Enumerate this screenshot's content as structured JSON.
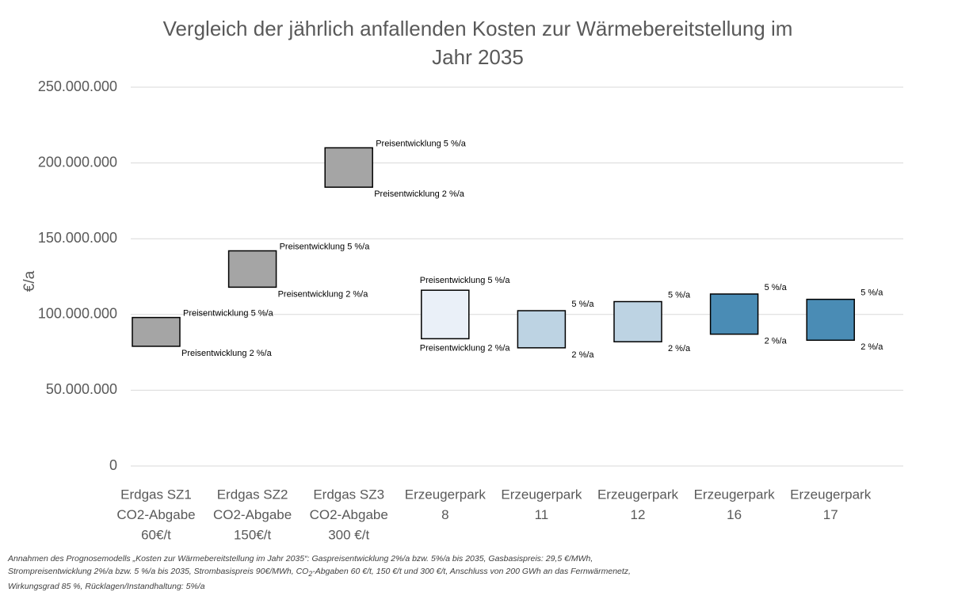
{
  "chart_data": {
    "type": "range_bar",
    "title": [
      "Vergleich der jährlich anfallenden Kosten zur Wärmebereitstellung im",
      "Jahr 2035"
    ],
    "y_label": "€/a",
    "categories": [
      [
        "Erdgas SZ1",
        "CO2-Abgabe",
        "60€/t"
      ],
      [
        "Erdgas SZ2",
        "CO2-Abgabe",
        "150€/t"
      ],
      [
        "Erdgas SZ3",
        "CO2-Abgabe",
        "300 €/t"
      ],
      [
        "Erzeugerpark",
        "8"
      ],
      [
        "Erzeugerpark",
        "11"
      ],
      [
        "Erzeugerpark",
        "12"
      ],
      [
        "Erzeugerpark",
        "16"
      ],
      [
        "Erzeugerpark",
        "17"
      ]
    ],
    "low": [
      79000000,
      118000000,
      184000000,
      84000000,
      78000000,
      82000000,
      87000000,
      83000000
    ],
    "high": [
      98000000,
      142000000,
      210000000,
      116000000,
      102500000,
      108500000,
      113500000,
      110000000
    ],
    "low_labels": [
      "Preisentwicklung 2 %/a",
      "Preisentwicklung 2 %/a",
      "Preisentwicklung 2 %/a",
      "Preisentwicklung 2 %/a",
      "2 %/a",
      "2 %/a",
      "2 %/a",
      "2 %/a"
    ],
    "high_labels": [
      "Preisentwicklung 5 %/a",
      "Preisentwicklung 5 %/a",
      "Preisentwicklung 5 %/a",
      "Preisentwicklung 5 %/a",
      "5 %/a",
      "5 %/a",
      "5 %/a",
      "5 %/a"
    ],
    "colors": [
      "#a5a5a5",
      "#a5a5a5",
      "#a5a5a5",
      "#eaf0f8",
      "#bdd3e3",
      "#bdd3e3",
      "#4a8cb5",
      "#4a8cb5"
    ],
    "ylim": [
      0,
      250000000
    ],
    "yticks": [
      0,
      {
        "value": 50000000,
        "label": "50.000.000"
      },
      {
        "value": 100000000,
        "label": "100.000.000"
      },
      {
        "value": 150000000,
        "label": "150.000.000"
      },
      {
        "value": 200000000,
        "label": "200.000.000"
      },
      {
        "value": 250000000,
        "label": "250.000.000"
      }
    ],
    "grid": true,
    "footnote": [
      "Annahmen des Prognosemodells „Kosten zur Wärmebereitstellung im Jahr 2035“: Gaspreisentwicklung 2%/a bzw. 5%/a bis 2035, Gasbasispreis: 29,5 €/MWh,",
      "Strompreisentwicklung 2%/a bzw. 5 %/a bis 2035, Strombasispreis 90€/MWh, CO",
      "2",
      "-Abgaben 60 €/t, 150 €/t und 300 €/t, Anschluss von 200 GWh an das Fernwärmenetz,",
      "Wirkungsgrad 85 %, Rücklagen/Instandhaltung: 5%/a"
    ]
  }
}
